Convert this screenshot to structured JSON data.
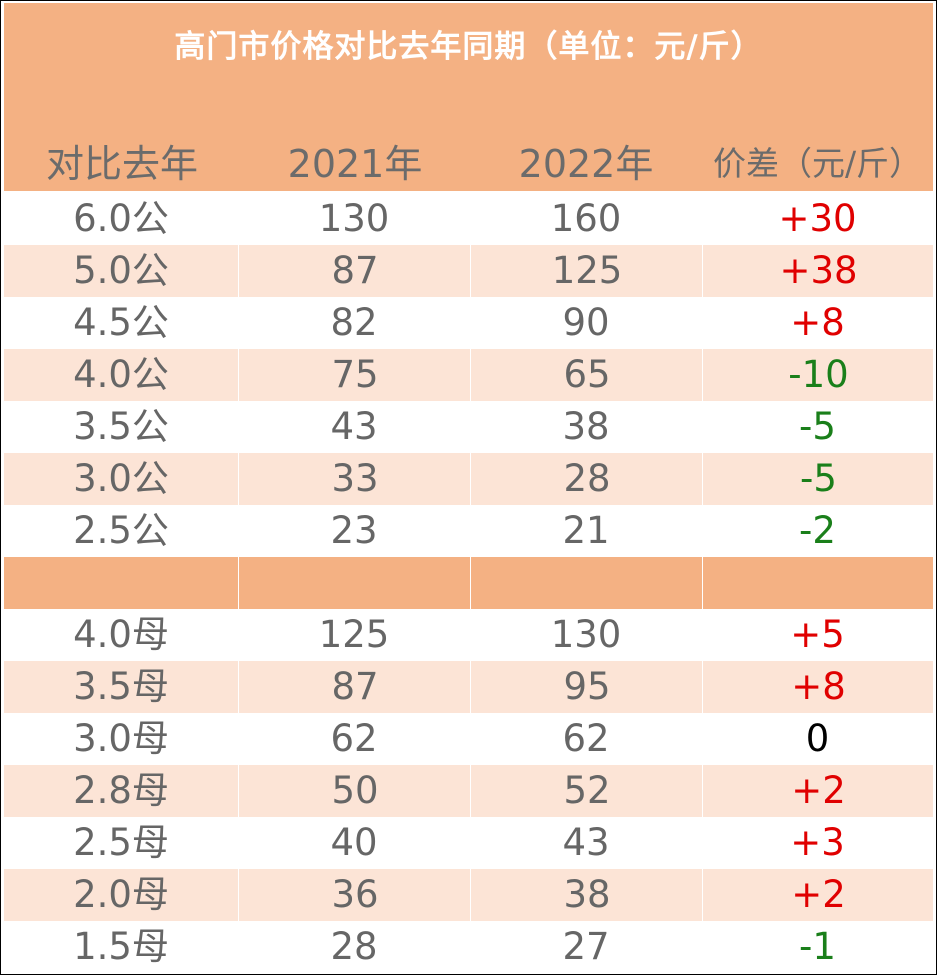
{
  "title": "高门市价格对比去年同期（单位：元/斤）",
  "columns": [
    "对比去年",
    "2021年",
    "2022年",
    "价差（元/斤）"
  ],
  "colors": {
    "header_bg": "#f4b183",
    "stripe_bg": "#fce4d6",
    "positive": "#e00000",
    "negative": "#1a7f1a",
    "neutral": "#000000",
    "text": "#666666"
  },
  "rows": [
    {
      "spec": "6.0公",
      "y2021": "130",
      "y2022": "160",
      "diff": "+30"
    },
    {
      "spec": "5.0公",
      "y2021": "87",
      "y2022": "125",
      "diff": "+38"
    },
    {
      "spec": "4.5公",
      "y2021": "82",
      "y2022": "90",
      "diff": "+8"
    },
    {
      "spec": "4.0公",
      "y2021": "75",
      "y2022": "65",
      "diff": "-10"
    },
    {
      "spec": "3.5公",
      "y2021": "43",
      "y2022": "38",
      "diff": "-5"
    },
    {
      "spec": "3.0公",
      "y2021": "33",
      "y2022": "28",
      "diff": "-5"
    },
    {
      "spec": "2.5公",
      "y2021": "23",
      "y2022": "21",
      "diff": "-2"
    },
    {
      "spec": "",
      "y2021": "",
      "y2022": "",
      "diff": ""
    },
    {
      "spec": "4.0母",
      "y2021": "125",
      "y2022": "130",
      "diff": "+5"
    },
    {
      "spec": "3.5母",
      "y2021": "87",
      "y2022": "95",
      "diff": "+8"
    },
    {
      "spec": "3.0母",
      "y2021": "62",
      "y2022": "62",
      "diff": "0"
    },
    {
      "spec": "2.8母",
      "y2021": "50",
      "y2022": "52",
      "diff": "+2"
    },
    {
      "spec": "2.5母",
      "y2021": "40",
      "y2022": "43",
      "diff": "+3"
    },
    {
      "spec": "2.0母",
      "y2021": "36",
      "y2022": "38",
      "diff": "+2"
    },
    {
      "spec": "1.5母",
      "y2021": "28",
      "y2022": "27",
      "diff": "-1"
    }
  ]
}
